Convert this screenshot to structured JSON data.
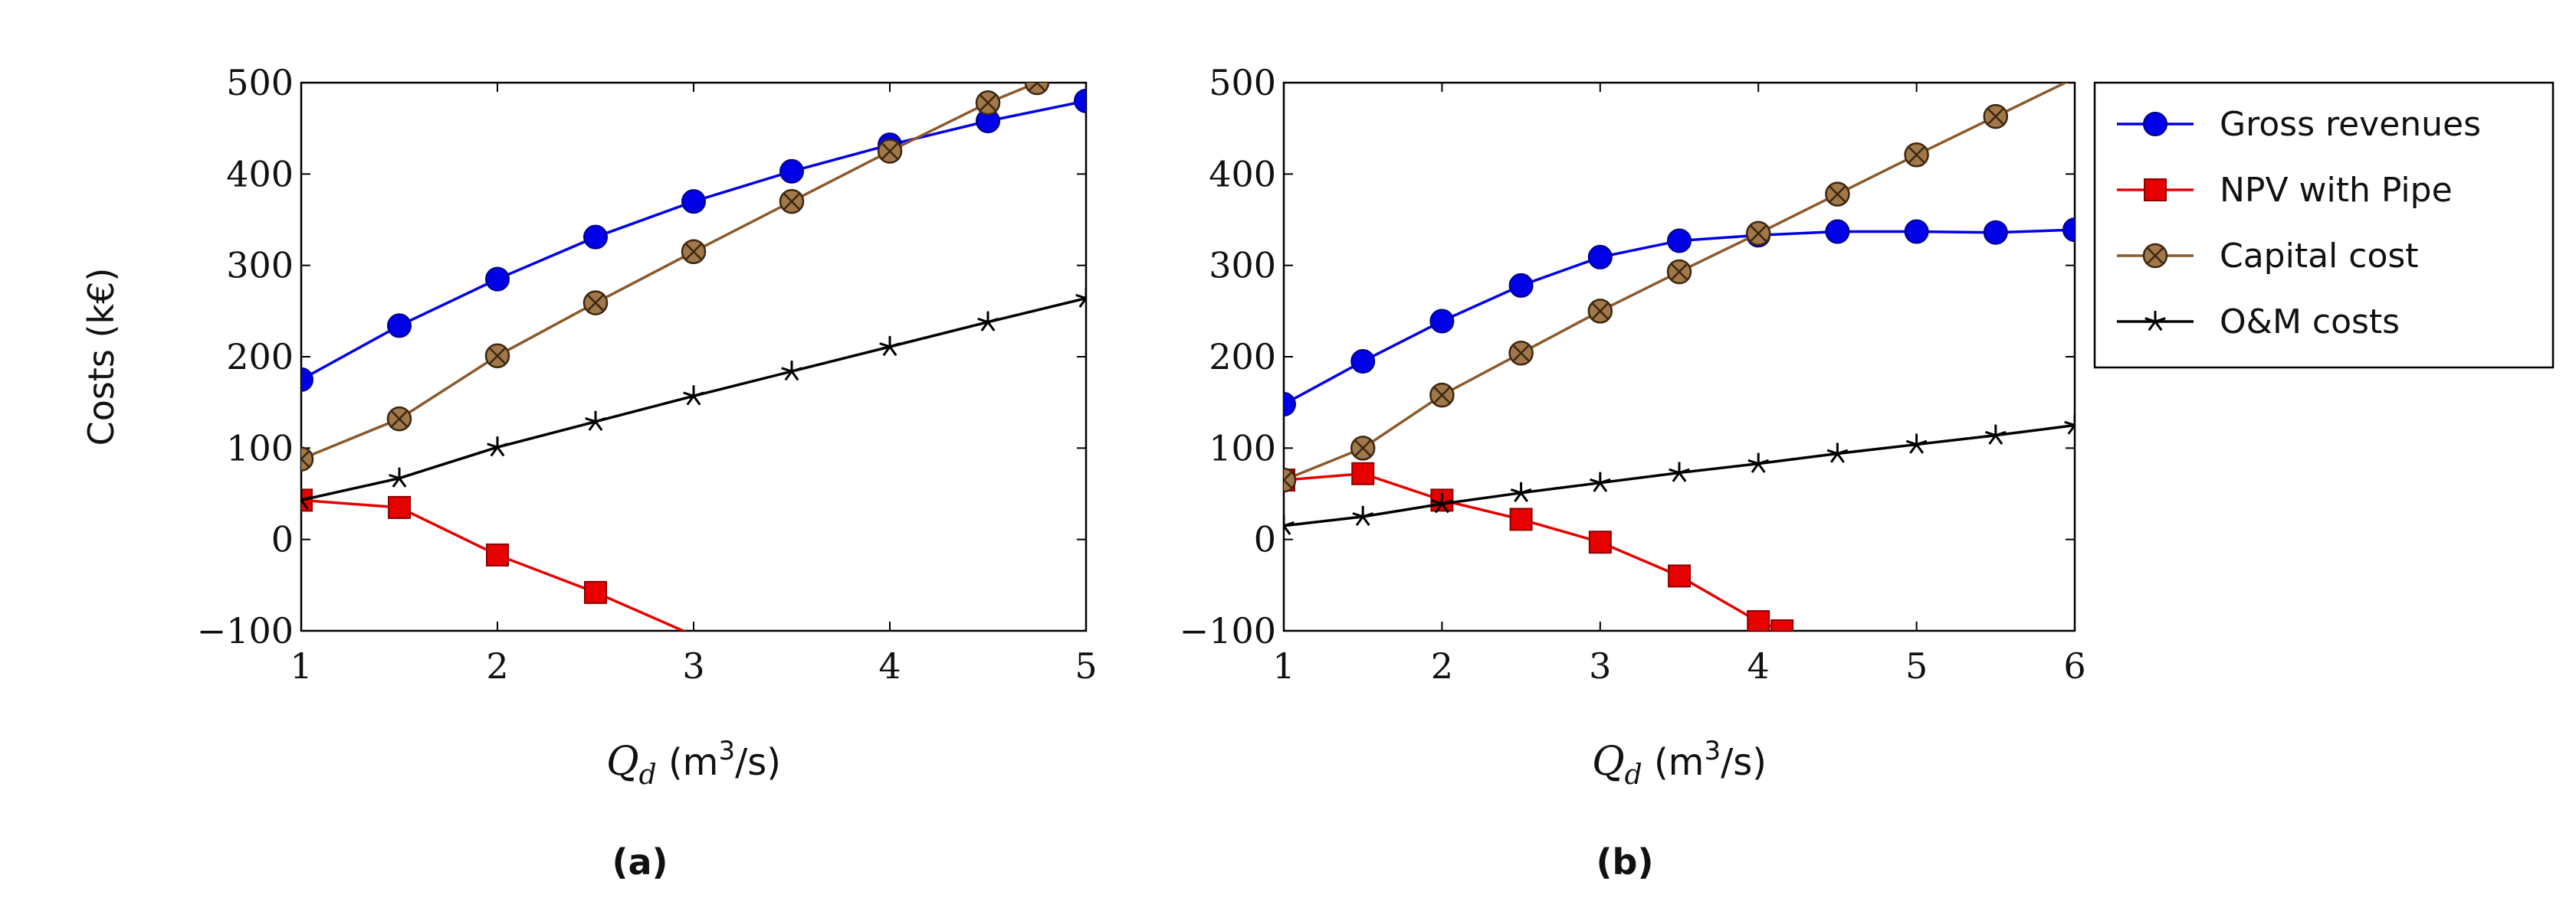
{
  "chart_data": [
    {
      "type": "line",
      "caption": "(a)",
      "xlabel_var": "Q",
      "xlabel_sub": "d",
      "xlabel_unit_pre": " (m",
      "xlabel_unit_sup": "3",
      "xlabel_unit_post": "/s)",
      "ylabel": "Costs (k€)",
      "xlim": [
        1,
        5
      ],
      "ylim": [
        -100,
        500
      ],
      "xticks": [
        1,
        2,
        3,
        4,
        5
      ],
      "yticks": [
        -100,
        0,
        100,
        200,
        300,
        400,
        500
      ],
      "ytick_labels": [
        "−100",
        "0",
        "100",
        "200",
        "300",
        "400",
        "500"
      ],
      "series": [
        {
          "name": "Gross revenues",
          "color": "#0000e6",
          "marker": "circle",
          "x": [
            1,
            1.5,
            2,
            2.5,
            3,
            3.5,
            4,
            4.5,
            5
          ],
          "y": [
            175,
            234,
            285,
            331,
            370,
            403,
            432,
            458,
            480
          ]
        },
        {
          "name": "NPV with Pipe",
          "color": "#e60000",
          "marker": "square",
          "x": [
            1,
            1.5,
            2,
            2.5,
            3
          ],
          "y": [
            43,
            35,
            -17,
            -58,
            -105
          ]
        },
        {
          "name": "Capital cost",
          "color": "#8b5a2b",
          "marker": "otimes",
          "x": [
            1,
            1.5,
            2,
            2.5,
            3,
            3.5,
            4,
            4.5,
            4.75
          ],
          "y": [
            88,
            132,
            201,
            259,
            315,
            370,
            425,
            478,
            500
          ]
        },
        {
          "name": "O&M costs",
          "color": "#000000",
          "marker": "star",
          "x": [
            1,
            1.5,
            2,
            2.5,
            3,
            3.5,
            4,
            4.5,
            5
          ],
          "y": [
            43,
            67,
            101,
            129,
            157,
            184,
            211,
            238,
            264
          ]
        }
      ]
    },
    {
      "type": "line",
      "caption": "(b)",
      "xlabel_var": "Q",
      "xlabel_sub": "d",
      "xlabel_unit_pre": " (m",
      "xlabel_unit_sup": "3",
      "xlabel_unit_post": "/s)",
      "ylabel": "",
      "xlim": [
        1,
        6
      ],
      "ylim": [
        -100,
        500
      ],
      "xticks": [
        1,
        2,
        3,
        4,
        5,
        6
      ],
      "yticks": [
        -100,
        0,
        100,
        200,
        300,
        400,
        500
      ],
      "ytick_labels": [
        "−100",
        "0",
        "100",
        "200",
        "300",
        "400",
        "500"
      ],
      "series": [
        {
          "name": "Gross revenues",
          "color": "#0000e6",
          "marker": "circle",
          "x": [
            1,
            1.5,
            2,
            2.5,
            3,
            3.5,
            4,
            4.5,
            5,
            5.5,
            6
          ],
          "y": [
            148,
            195,
            239,
            278,
            309,
            327,
            333,
            337,
            337,
            336,
            339
          ]
        },
        {
          "name": "NPV with Pipe",
          "color": "#e60000",
          "marker": "square",
          "x": [
            1,
            1.5,
            2,
            2.5,
            3,
            3.5,
            4,
            4.15
          ],
          "y": [
            65,
            72,
            43,
            22,
            -3,
            -40,
            -90,
            -100
          ]
        },
        {
          "name": "Capital cost",
          "color": "#8b5a2b",
          "marker": "otimes",
          "x": [
            1,
            1.5,
            2,
            2.5,
            3,
            3.5,
            4,
            4.5,
            5,
            5.5,
            6
          ],
          "y": [
            65,
            100,
            158,
            204,
            250,
            293,
            335,
            378,
            421,
            463,
            505
          ]
        },
        {
          "name": "O&M costs",
          "color": "#000000",
          "marker": "star",
          "x": [
            1,
            1.5,
            2,
            2.5,
            3,
            3.5,
            4,
            4.5,
            5,
            5.5,
            6
          ],
          "y": [
            15,
            25,
            39,
            51,
            62,
            73,
            83,
            94,
            104,
            114,
            125
          ]
        }
      ]
    }
  ],
  "legend": {
    "placement": "right of plot (b)",
    "entries": [
      {
        "label": "Gross revenues",
        "color": "#0000e6",
        "marker": "circle"
      },
      {
        "label": "NPV with Pipe",
        "color": "#e60000",
        "marker": "square"
      },
      {
        "label": "Capital cost",
        "color": "#8b5a2b",
        "marker": "otimes"
      },
      {
        "label": "O&M costs",
        "color": "#000000",
        "marker": "star"
      }
    ]
  }
}
